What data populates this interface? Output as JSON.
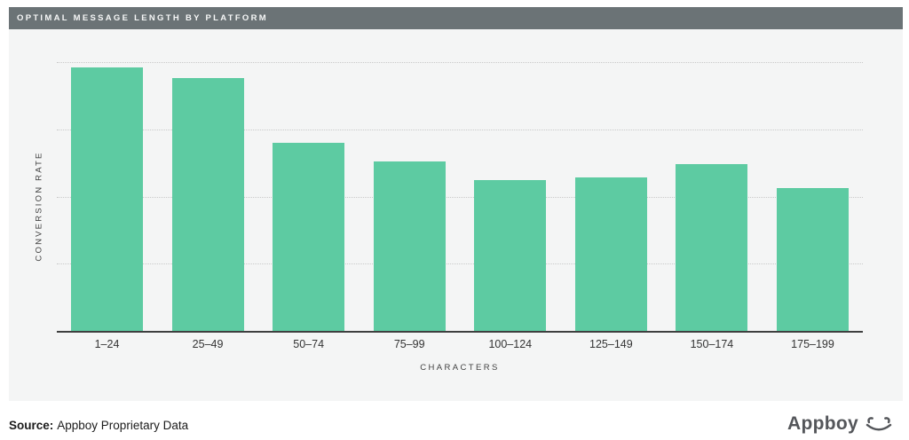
{
  "header": {
    "title": "OPTIMAL MESSAGE LENGTH BY PLATFORM"
  },
  "chart_data": {
    "type": "bar",
    "title": "OPTIMAL MESSAGE LENGTH BY PLATFORM",
    "categories": [
      "1–24",
      "25–49",
      "50–74",
      "75–99",
      "100–124",
      "125–149",
      "150–174",
      "175–199"
    ],
    "values": [
      98,
      94,
      70,
      63,
      56,
      57,
      62,
      53
    ],
    "xlabel": "CHARACTERS",
    "ylabel": "CONVERSION RATE",
    "ylim": [
      0,
      100
    ],
    "y_tick_labels": [],
    "grid": "horizontal dotted lines, 4 above axis",
    "legend": "none"
  },
  "footer": {
    "source_label": "Source:",
    "source_text": "Appboy Proprietary Data",
    "brand": "Appboy"
  },
  "colors": {
    "bar_green": "#5dcba2",
    "header_bg": "#6b7376",
    "panel_bg": "#f4f5f5",
    "axis": "#3e3f3f",
    "gridline": "#c9c9c9"
  }
}
